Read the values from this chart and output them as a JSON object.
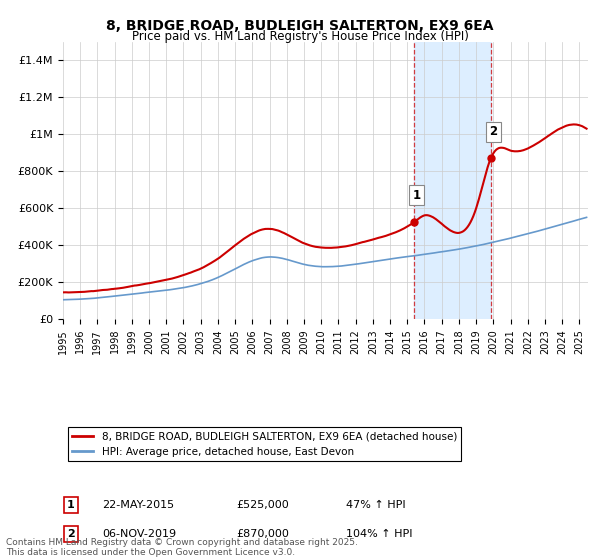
{
  "title": "8, BRIDGE ROAD, BUDLEIGH SALTERTON, EX9 6EA",
  "subtitle": "Price paid vs. HM Land Registry's House Price Index (HPI)",
  "legend_label_red": "8, BRIDGE ROAD, BUDLEIGH SALTERTON, EX9 6EA (detached house)",
  "legend_label_blue": "HPI: Average price, detached house, East Devon",
  "annotation1_label": "1",
  "annotation1_date": "22-MAY-2015",
  "annotation1_price": "£525,000",
  "annotation1_hpi": "47% ↑ HPI",
  "annotation2_label": "2",
  "annotation2_date": "06-NOV-2019",
  "annotation2_price": "£870,000",
  "annotation2_hpi": "104% ↑ HPI",
  "footer": "Contains HM Land Registry data © Crown copyright and database right 2025.\nThis data is licensed under the Open Government Licence v3.0.",
  "red_color": "#cc0000",
  "blue_color": "#6699cc",
  "shade_color": "#ddeeff",
  "grid_color": "#cccccc",
  "background_color": "#ffffff",
  "ylim": [
    0,
    1500000
  ],
  "yticks": [
    0,
    200000,
    400000,
    600000,
    800000,
    1000000,
    1200000,
    1400000
  ],
  "ytick_labels": [
    "£0",
    "£200K",
    "£400K",
    "£600K",
    "£800K",
    "£1M",
    "£1.2M",
    "£1.4M"
  ],
  "sale1_x": 2015.39,
  "sale1_y": 525000,
  "sale2_x": 2019.85,
  "sale2_y": 870000,
  "xmin": 1995,
  "xmax": 2025.5,
  "hpi_controls_x": [
    1995,
    1997,
    2000,
    2004,
    2007,
    2009,
    2013,
    2016,
    2019,
    2022,
    2025.5
  ],
  "hpi_controls_y": [
    105000,
    115000,
    145000,
    225000,
    335000,
    295000,
    310000,
    350000,
    395000,
    460000,
    550000
  ],
  "red_controls_x": [
    1995,
    1997,
    2000,
    2004,
    2007,
    2009,
    2013,
    2015.39,
    2016,
    2019,
    2019.85,
    2021,
    2023,
    2025.5
  ],
  "red_controls_y": [
    145000,
    155000,
    195000,
    330000,
    490000,
    410000,
    430000,
    525000,
    560000,
    600000,
    870000,
    910000,
    975000,
    1020000
  ]
}
